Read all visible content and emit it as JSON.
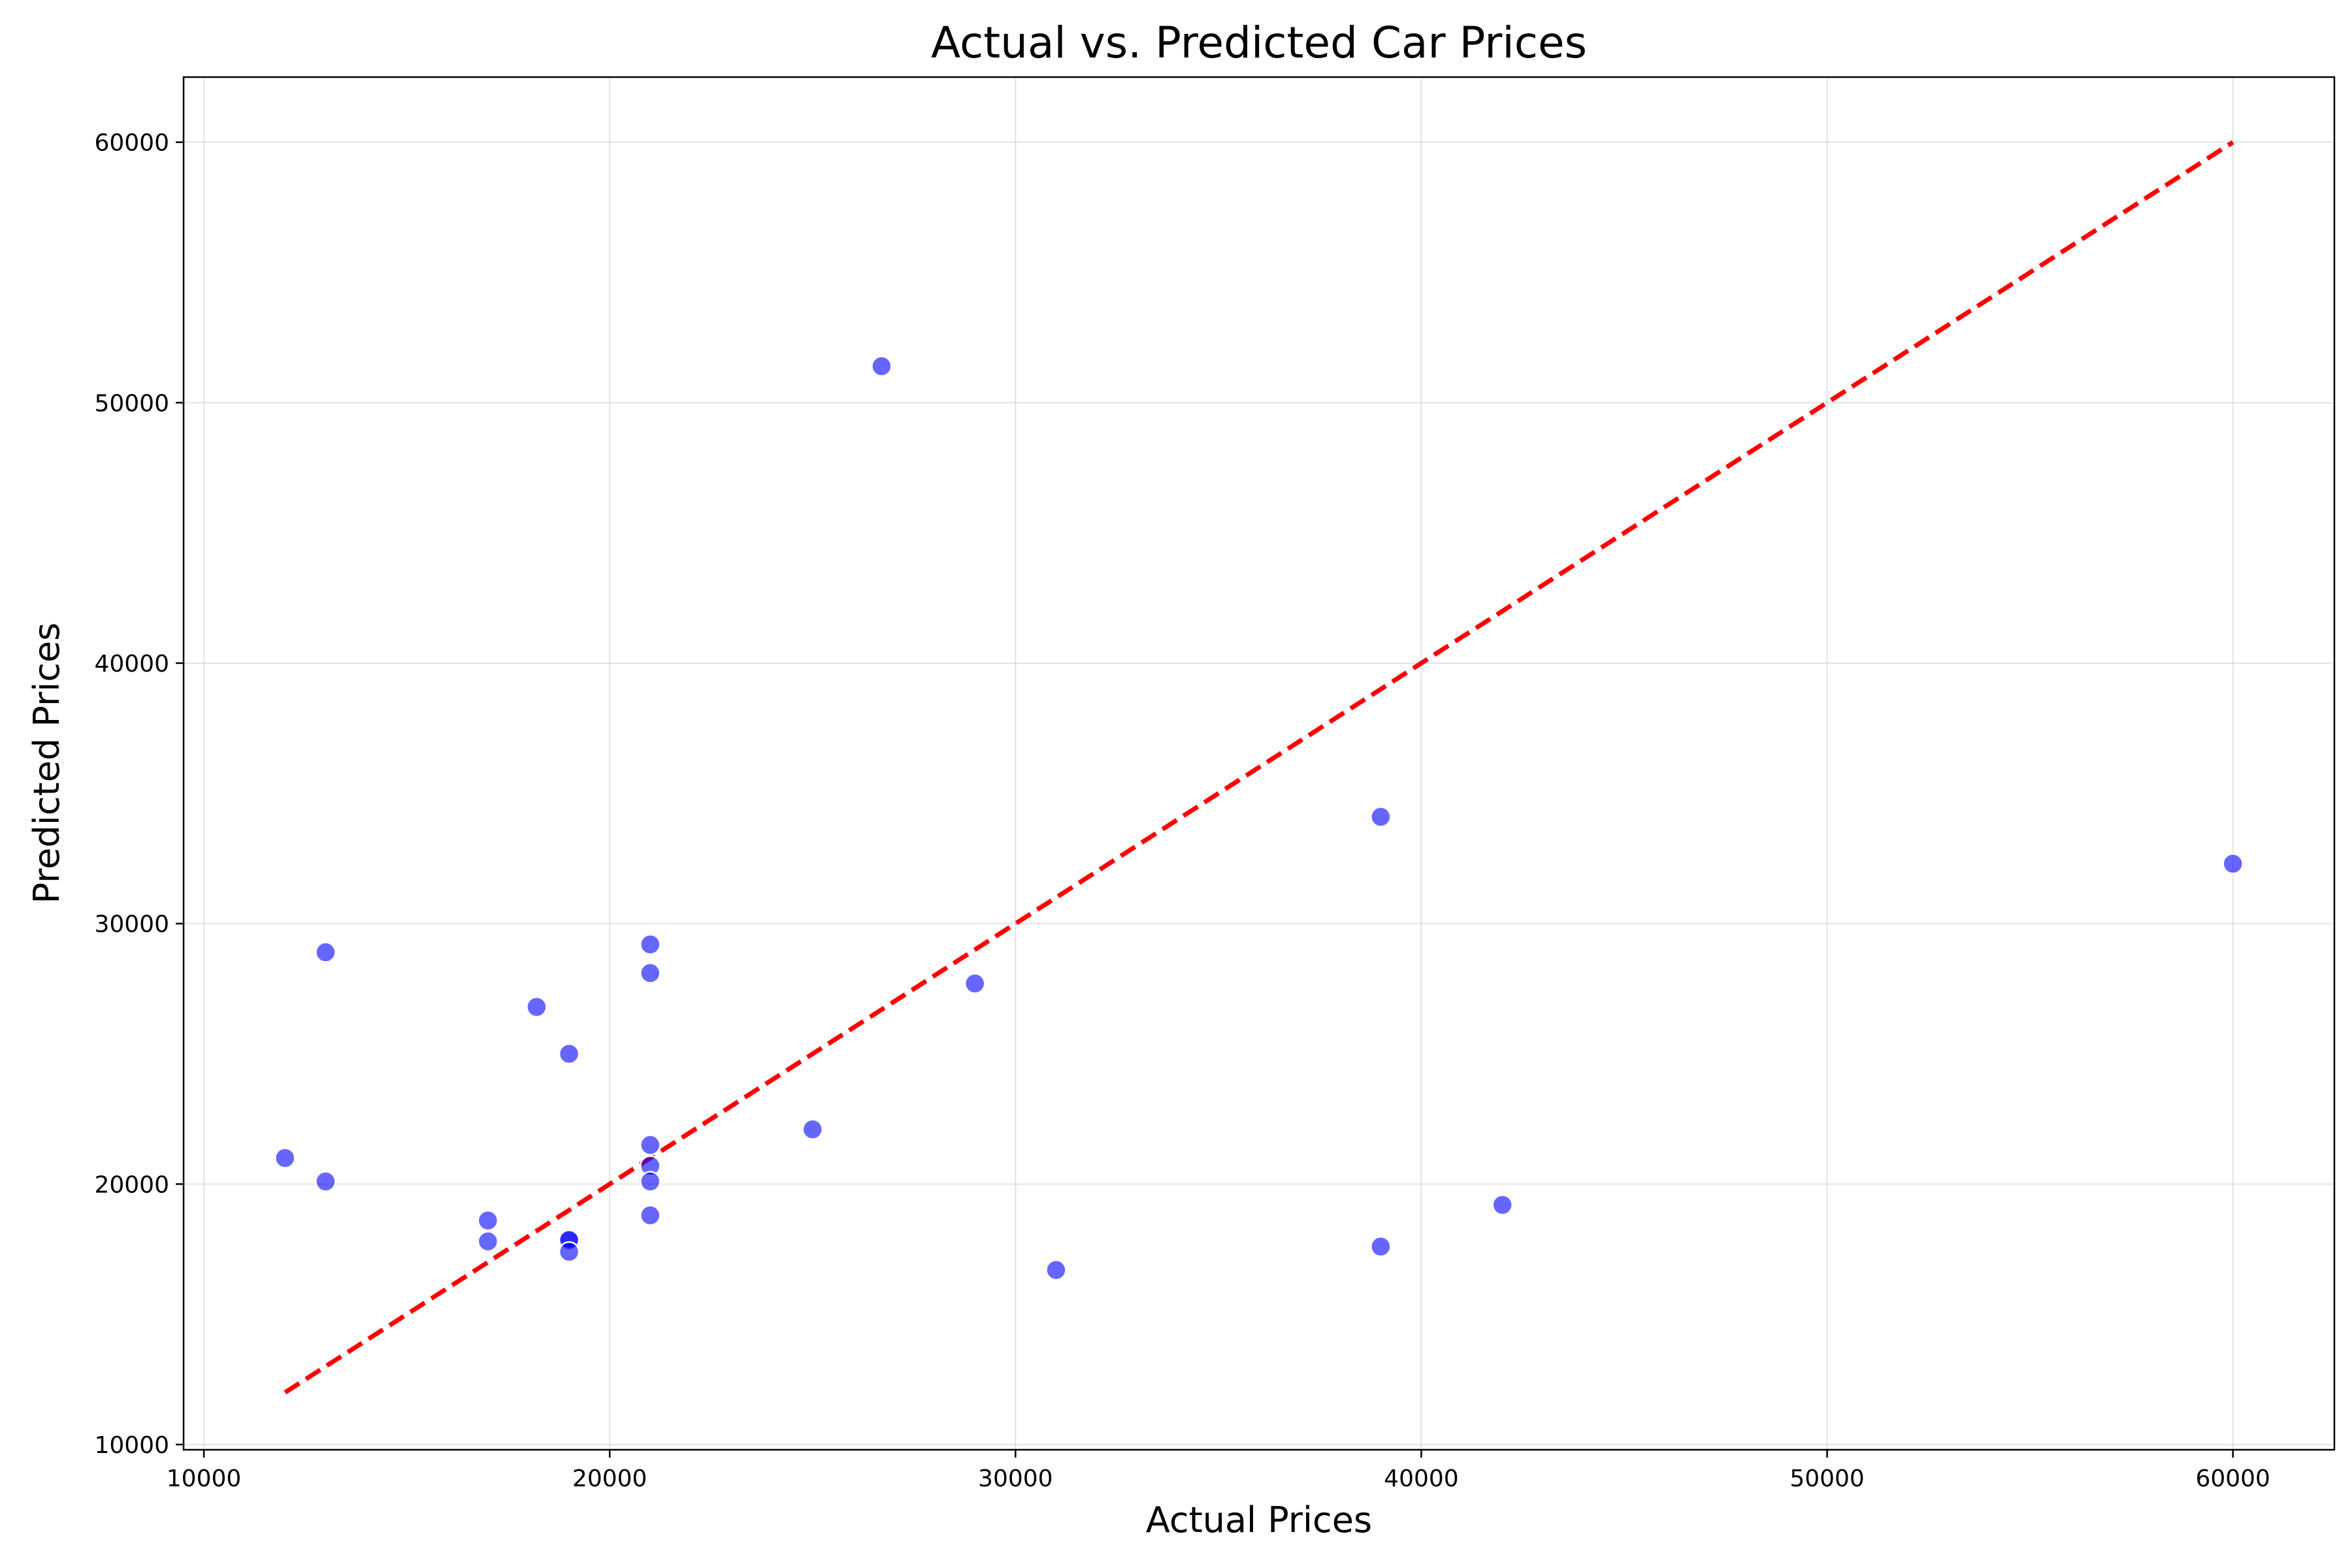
{
  "chart_data": {
    "type": "scatter",
    "title": "Actual vs. Predicted Car Prices",
    "xlabel": "Actual Prices",
    "ylabel": "Predicted Prices",
    "xlim": [
      9500,
      62500
    ],
    "ylim": [
      9800,
      62500
    ],
    "xticks": [
      10000,
      20000,
      30000,
      40000,
      50000,
      60000
    ],
    "yticks": [
      10000,
      20000,
      30000,
      40000,
      50000,
      60000
    ],
    "grid": true,
    "point_color": "#0000ff",
    "point_alpha": 0.6,
    "reference_line": {
      "x": [
        12000,
        60000
      ],
      "y": [
        12000,
        60000
      ],
      "color": "#ff0000",
      "style": "dashed"
    },
    "points": [
      {
        "x": 26700,
        "y": 51400
      },
      {
        "x": 39000,
        "y": 34100
      },
      {
        "x": 60000,
        "y": 32300
      },
      {
        "x": 13000,
        "y": 28900
      },
      {
        "x": 21000,
        "y": 29200
      },
      {
        "x": 21000,
        "y": 28100
      },
      {
        "x": 29000,
        "y": 27700
      },
      {
        "x": 18200,
        "y": 26800
      },
      {
        "x": 19000,
        "y": 25000
      },
      {
        "x": 25000,
        "y": 22100
      },
      {
        "x": 21000,
        "y": 21500
      },
      {
        "x": 21000,
        "y": 20700
      },
      {
        "x": 12000,
        "y": 21000
      },
      {
        "x": 13000,
        "y": 20100
      },
      {
        "x": 21000,
        "y": 20100
      },
      {
        "x": 42000,
        "y": 19200
      },
      {
        "x": 21000,
        "y": 18800
      },
      {
        "x": 17000,
        "y": 18600
      },
      {
        "x": 17000,
        "y": 17800
      },
      {
        "x": 19000,
        "y": 17900
      },
      {
        "x": 19000,
        "y": 17850
      },
      {
        "x": 19000,
        "y": 17400
      },
      {
        "x": 39000,
        "y": 17600
      },
      {
        "x": 31000,
        "y": 16700
      }
    ]
  }
}
